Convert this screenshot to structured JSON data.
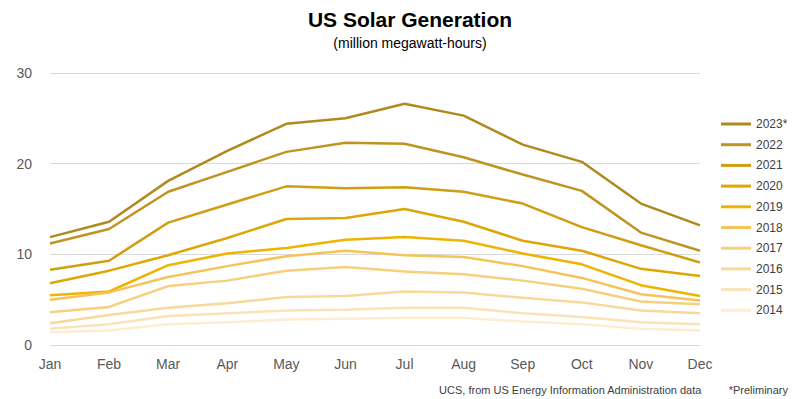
{
  "chart_data": {
    "type": "line",
    "title": "US Solar Generation",
    "subtitle": "(million megawatt-hours)",
    "annotations": [
      "UCS, from US Energy Information Administration data",
      "*Preliminary"
    ],
    "categories": [
      "Jan",
      "Feb",
      "Mar",
      "Apr",
      "May",
      "Jun",
      "Jul",
      "Aug",
      "Sep",
      "Oct",
      "Nov",
      "Dec"
    ],
    "series": [
      {
        "name": "2023*",
        "color": "#b08a1e",
        "values": [
          11.9,
          13.6,
          18.1,
          21.4,
          24.4,
          25.0,
          26.6,
          25.3,
          22.1,
          20.2,
          15.6,
          13.2
        ]
      },
      {
        "name": "2022",
        "color": "#bf9420",
        "values": [
          11.2,
          12.8,
          16.9,
          19.1,
          21.3,
          22.3,
          22.2,
          20.7,
          18.8,
          17.0,
          12.4,
          10.4
        ]
      },
      {
        "name": "2021",
        "color": "#cf9e12",
        "values": [
          8.3,
          9.3,
          13.5,
          15.5,
          17.5,
          17.3,
          17.4,
          16.9,
          15.6,
          13.0,
          11.0,
          9.1
        ]
      },
      {
        "name": "2020",
        "color": "#dea705",
        "values": [
          6.8,
          8.2,
          9.9,
          11.8,
          13.9,
          14.0,
          15.0,
          13.6,
          11.5,
          10.4,
          8.4,
          7.6
        ]
      },
      {
        "name": "2019",
        "color": "#efb400",
        "values": [
          5.5,
          5.9,
          8.8,
          10.1,
          10.7,
          11.6,
          11.9,
          11.5,
          10.1,
          8.9,
          6.6,
          5.4
        ]
      },
      {
        "name": "2018",
        "color": "#f4c45a",
        "values": [
          5.0,
          5.8,
          7.5,
          8.7,
          9.8,
          10.4,
          9.9,
          9.7,
          8.7,
          7.4,
          5.6,
          4.9
        ]
      },
      {
        "name": "2017",
        "color": "#f7cf7e",
        "values": [
          3.6,
          4.2,
          6.5,
          7.1,
          8.2,
          8.6,
          8.1,
          7.8,
          7.1,
          6.2,
          4.8,
          4.5
        ]
      },
      {
        "name": "2016",
        "color": "#f9d99b",
        "values": [
          2.4,
          3.3,
          4.1,
          4.6,
          5.3,
          5.4,
          5.9,
          5.8,
          5.2,
          4.7,
          3.8,
          3.5
        ]
      },
      {
        "name": "2015",
        "color": "#fbe3b8",
        "values": [
          1.8,
          2.3,
          3.2,
          3.5,
          3.8,
          3.9,
          4.1,
          4.1,
          3.5,
          3.1,
          2.5,
          2.3
        ]
      },
      {
        "name": "2014",
        "color": "#fdedd3",
        "values": [
          1.4,
          1.6,
          2.3,
          2.5,
          2.8,
          2.9,
          3.0,
          3.0,
          2.6,
          2.3,
          1.8,
          1.6
        ]
      }
    ],
    "ylim": [
      0,
      30
    ],
    "yticks": [
      0,
      10,
      20,
      30
    ],
    "grid": true,
    "legend": "right"
  }
}
